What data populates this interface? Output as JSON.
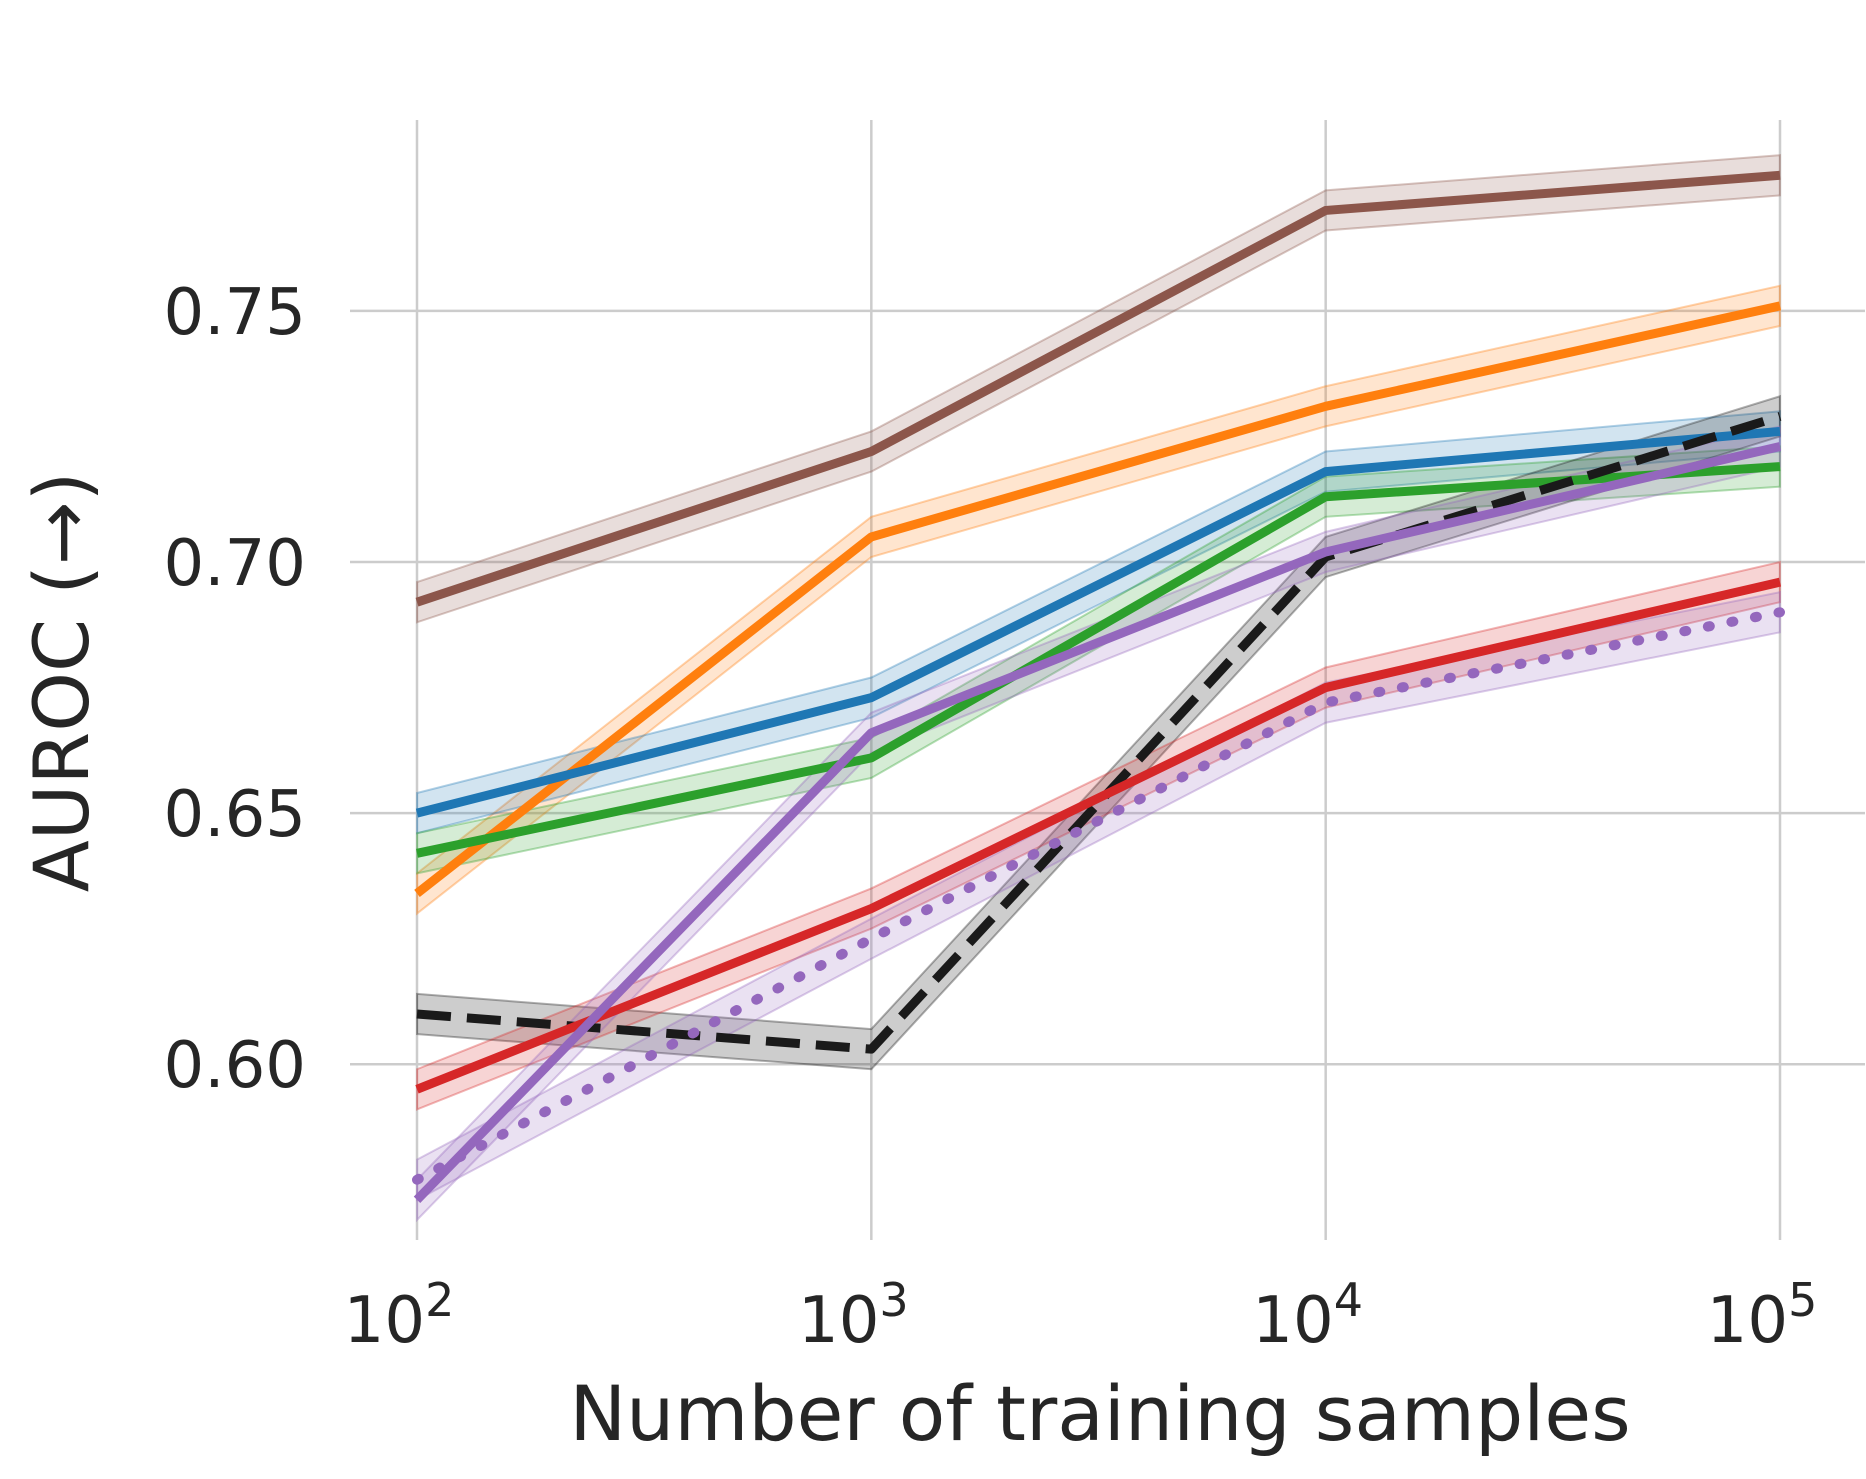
{
  "chart_data": {
    "type": "line",
    "title": "",
    "xlabel": "Number of training samples",
    "ylabel": "AUROC (→)",
    "x_scale": "log",
    "x": [
      100,
      1000,
      10000,
      100000
    ],
    "xlim": [
      100,
      100000
    ],
    "ylim": [
      0.565,
      0.79
    ],
    "x_ticks": [
      {
        "value": 100,
        "base": "10",
        "exp": "2"
      },
      {
        "value": 1000,
        "base": "10",
        "exp": "3"
      },
      {
        "value": 10000,
        "base": "10",
        "exp": "4"
      },
      {
        "value": 100000,
        "base": "10",
        "exp": "5"
      }
    ],
    "y_ticks": [
      {
        "value": 0.6,
        "label": "0.60"
      },
      {
        "value": 0.65,
        "label": "0.65"
      },
      {
        "value": 0.7,
        "label": "0.70"
      },
      {
        "value": 0.75,
        "label": "0.75"
      }
    ],
    "grid": true,
    "series": [
      {
        "name": "brown",
        "color": "#8c564b",
        "dash": "solid",
        "band": 0.004,
        "values": [
          0.692,
          0.722,
          0.77,
          0.777
        ]
      },
      {
        "name": "orange",
        "color": "#ff7f0e",
        "dash": "solid",
        "band": 0.004,
        "values": [
          0.634,
          0.705,
          0.731,
          0.751
        ]
      },
      {
        "name": "blue",
        "color": "#1f77b4",
        "dash": "solid",
        "band": 0.004,
        "values": [
          0.65,
          0.673,
          0.718,
          0.726
        ]
      },
      {
        "name": "green",
        "color": "#2ca02c",
        "dash": "solid",
        "band": 0.004,
        "values": [
          0.642,
          0.661,
          0.713,
          0.719
        ]
      },
      {
        "name": "black-dashed",
        "color": "#1a1a1a",
        "dash": "dashed",
        "band": 0.004,
        "values": [
          0.61,
          0.603,
          0.701,
          0.729
        ]
      },
      {
        "name": "red",
        "color": "#d62728",
        "dash": "solid",
        "band": 0.004,
        "values": [
          0.595,
          0.631,
          0.675,
          0.696
        ]
      },
      {
        "name": "purple-dotted",
        "color": "#9467bd",
        "dash": "dotted",
        "band": 0.004,
        "values": [
          0.577,
          0.625,
          0.672,
          0.69
        ]
      },
      {
        "name": "purple",
        "color": "#9467bd",
        "dash": "solid",
        "band": 0.004,
        "values": [
          0.573,
          0.666,
          0.702,
          0.723
        ]
      }
    ]
  }
}
